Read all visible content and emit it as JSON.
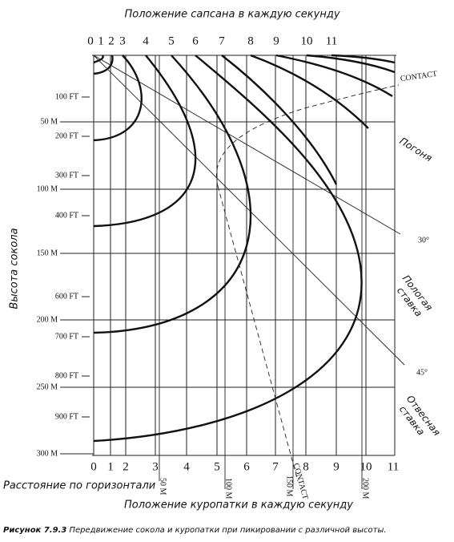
{
  "title_top": "Положение сапсана в каждую секунду",
  "title_bottom": "Положение куропатки в каждую секунду",
  "y_axis_title": "Высота сокола",
  "x_axis_title": "Расстояние по горизонтали",
  "caption": {
    "label": "Рисунок 7.9.3",
    "text": "Передвижение сокола и куропатки при пикировании с различной высоты."
  },
  "top_labels": [
    "0",
    "1",
    "2",
    "3",
    "4",
    "5",
    "6",
    "7",
    "8",
    "9",
    "10",
    "11"
  ],
  "x_labels": [
    "0",
    "1",
    "2",
    "3",
    "4",
    "5",
    "6",
    "7",
    "8",
    "9",
    "10",
    "11"
  ],
  "ft_labels": [
    "100 FT",
    "200 FT",
    "300 FT",
    "400 FT",
    "600 FT",
    "700 FT",
    "800 FT",
    "900 FT"
  ],
  "m_labels": [
    "50 M",
    "100 M",
    "150 M",
    "200 M",
    "250 M",
    "300 M"
  ],
  "vertical_m_labels": [
    "50 M",
    "100 M",
    "150 M",
    "200 M"
  ],
  "annotations": {
    "contact_top": "CONTACT",
    "contact_bottom": "CONTACT",
    "pursuit": "Погоня",
    "shallow": [
      "Пологая",
      "ставка"
    ],
    "steep": [
      "Отвесная",
      "ставка"
    ],
    "angle30": "30°",
    "angle45": "45°"
  }
}
